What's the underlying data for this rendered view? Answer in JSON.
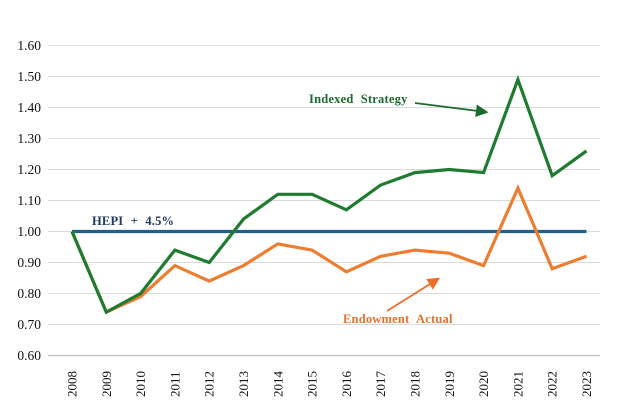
{
  "chart_data": {
    "type": "line",
    "title": "",
    "xlabel": "",
    "ylabel": "",
    "categories": [
      "2008",
      "2009",
      "2010",
      "2011",
      "2012",
      "2013",
      "2014",
      "2015",
      "2016",
      "2017",
      "2018",
      "2019",
      "2020",
      "2021",
      "2022",
      "2023"
    ],
    "series": [
      {
        "name": "HEPI + 4.5%",
        "color": "#20618C",
        "values": [
          1.0,
          1.0,
          1.0,
          1.0,
          1.0,
          1.0,
          1.0,
          1.0,
          1.0,
          1.0,
          1.0,
          1.0,
          1.0,
          1.0,
          1.0,
          1.0
        ]
      },
      {
        "name": "Endowment Actual",
        "color": "#ED7D31",
        "values": [
          1.0,
          0.74,
          0.79,
          0.89,
          0.84,
          0.89,
          0.96,
          0.94,
          0.87,
          0.92,
          0.94,
          0.93,
          0.89,
          1.14,
          0.88,
          0.92
        ]
      },
      {
        "name": "Indexed Strategy",
        "color": "#1E7B2F",
        "values": [
          1.0,
          0.74,
          0.8,
          0.94,
          0.9,
          1.04,
          1.12,
          1.12,
          1.07,
          1.15,
          1.19,
          1.2,
          1.19,
          1.49,
          1.18,
          1.26
        ]
      }
    ],
    "ylim": [
      0.6,
      1.6
    ],
    "ytick_step": 0.1,
    "ytick_labels": [
      "1.60",
      "1.50",
      "1.40",
      "1.30",
      "1.20",
      "1.10",
      "1.00",
      "0.90",
      "0.80",
      "0.70",
      "0.60"
    ],
    "grid": true,
    "gridline_color": "#DADADA",
    "axis_line_color": "#BFBFBF",
    "legend_position": "inline-annotations",
    "annotations": [
      {
        "text": "HEPI + 4.5%",
        "color": "#1F3864",
        "target_series": "HEPI + 4.5%"
      },
      {
        "text": "Indexed Strategy",
        "color": "#1C6B2D",
        "target_series": "Indexed Strategy",
        "arrow": true
      },
      {
        "text": "Endowment Actual",
        "color": "#E8702A",
        "target_series": "Endowment Actual",
        "arrow": true
      }
    ]
  }
}
